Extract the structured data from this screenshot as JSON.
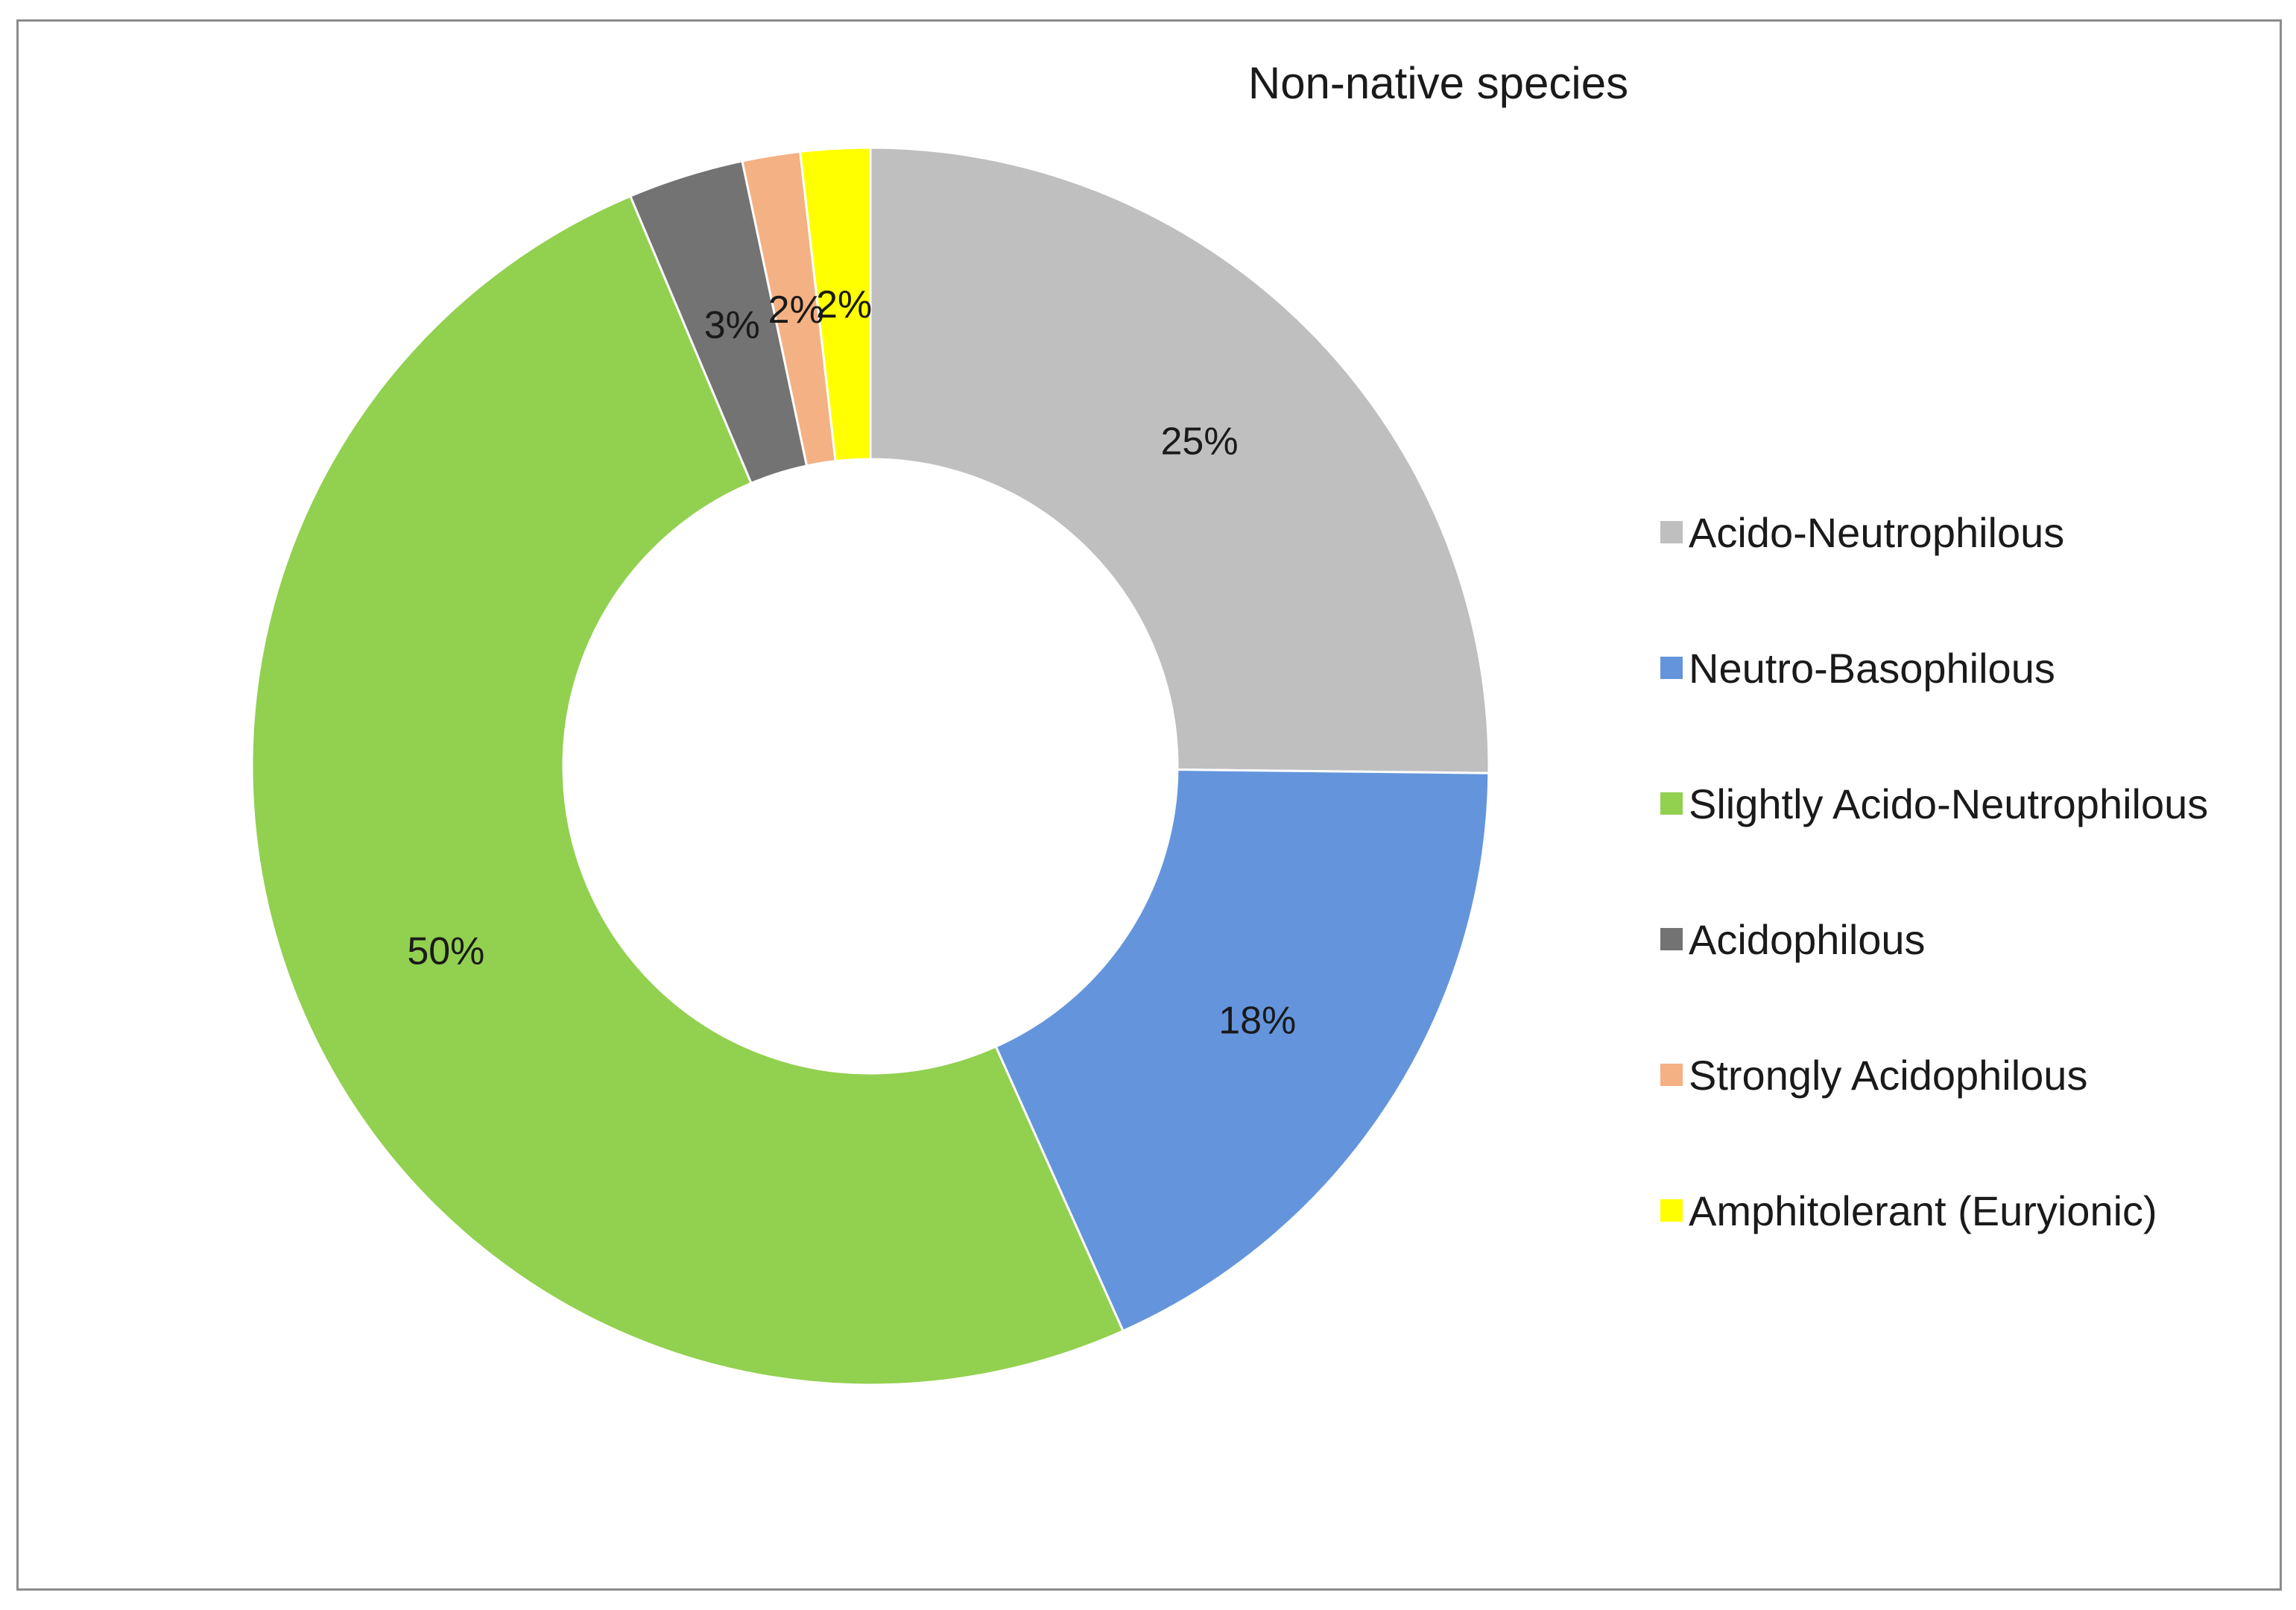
{
  "chart_data": {
    "type": "pie",
    "style": "donut",
    "title": "Non-native species",
    "slices": [
      {
        "label": "Acido-Neutrophilous",
        "value": 25,
        "display": "25%",
        "color": "#bfbfbf"
      },
      {
        "label": "Neutro-Basophilous",
        "value": 18,
        "display": "18%",
        "color": "#6495dc"
      },
      {
        "label": "Slightly Acido-Neutrophilous",
        "value": 50,
        "display": "50%",
        "color": "#92d050"
      },
      {
        "label": "Acidophilous",
        "value": 3,
        "display": "3%",
        "color": "#737373"
      },
      {
        "label": "Strongly Acidophilous",
        "value": 1.5,
        "display": "2%",
        "color": "#f4b183"
      },
      {
        "label": "Amphitolerant (Euryionic)",
        "value": 1.8,
        "display": "2%",
        "color": "#ffff00"
      }
    ],
    "legend_position": "right",
    "start_angle": "12 o'clock",
    "direction": "clockwise"
  }
}
